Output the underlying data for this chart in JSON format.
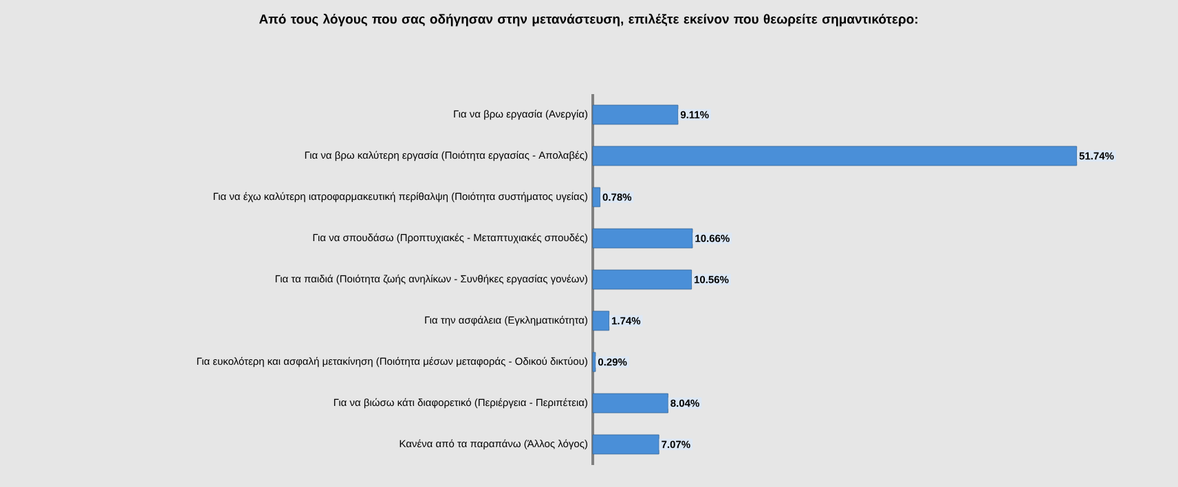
{
  "chart_data": {
    "type": "bar",
    "orientation": "horizontal",
    "title": "Από τους λόγους που σας οδήγησαν στην μετανάστευση, επιλέξτε εκείνον που θεωρείτε σημαντικότερο:",
    "categories": [
      "Για να βρω εργασία (Ανεργία)",
      "Για να βρω καλύτερη εργασία (Ποιότητα εργασίας - Απολαβές)",
      "Για να έχω καλύτερη ιατροφαρμακευτική περίθαλψη (Ποιότητα συστήματος υγείας)",
      "Για να σπουδάσω (Προπτυχιακές - Μεταπτυχιακές σπουδές)",
      "Για τα παιδιά (Ποιότητα ζωής ανηλίκων - Συνθήκες εργασίας γονέων)",
      "Για την ασφάλεια (Εγκληματικότητα)",
      "Για ευκολότερη και ασφαλή μετακίνηση (Ποιότητα μέσων μεταφοράς - Οδικού δικτύου)",
      "Για να βιώσω κάτι διαφορετικό (Περιέργεια - Περιπέτεια)",
      "Κανένα από τα παραπάνω (Άλλος λόγος)"
    ],
    "values": [
      9.11,
      51.74,
      0.78,
      10.66,
      10.56,
      1.74,
      0.29,
      8.04,
      7.07
    ],
    "value_labels": [
      "9.11%",
      "51.74%",
      "0.78%",
      "10.66%",
      "10.56%",
      "1.74%",
      "0.29%",
      "8.04%",
      "7.07%"
    ],
    "color": "#4a8fd8"
  }
}
